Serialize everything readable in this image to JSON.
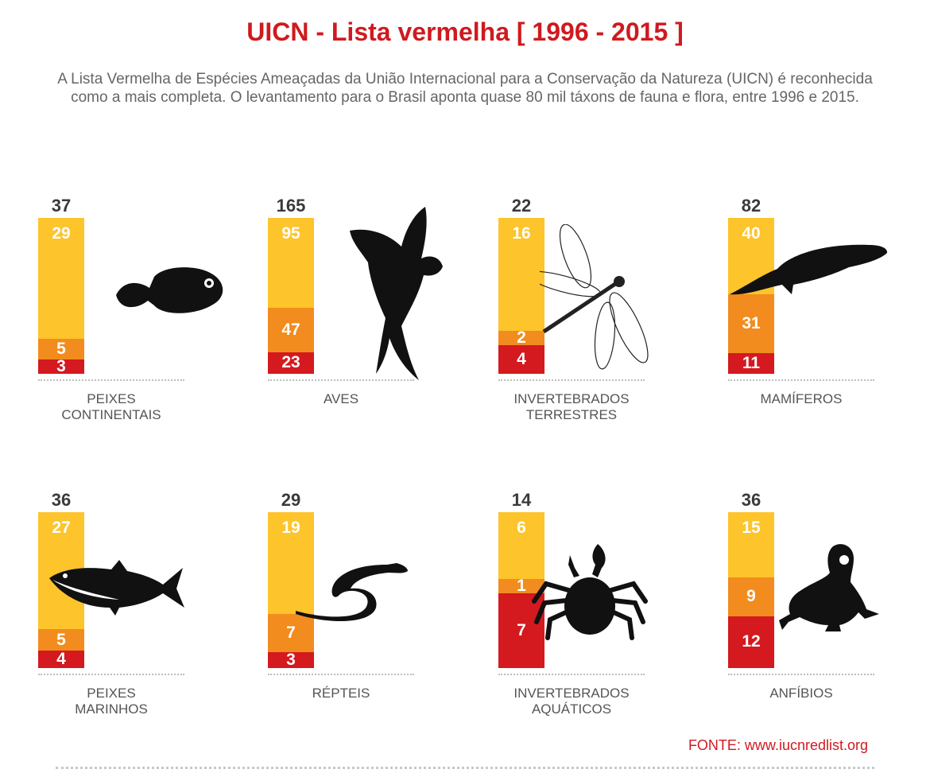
{
  "title": "UICN - Lista vermelha [ 1996 - 2015 ]",
  "subtitle": "A Lista Vermelha de Espécies Ameaçadas da União Internacional para a Conservação da Natureza (UICN) é reconhecida como a mais completa. O levantamento para o Brasil aponta quase 80 mil táxons de fauna e flora, entre 1996 e 2015.",
  "source": "FONTE: www.iucnredlist.org",
  "colors": {
    "top": "#fdc42b",
    "middle": "#f28c1e",
    "bottom": "#d4191f",
    "title": "#cf1a1f"
  },
  "chart_data": {
    "type": "bar",
    "stacked": true,
    "layout": "small multiples, 4 columns x 2 rows",
    "panels": [
      {
        "category": "PEIXES CONTINENTAIS",
        "total": 37,
        "segments": [
          29,
          5,
          3
        ],
        "icon": "fish-icon"
      },
      {
        "category": "AVES",
        "total": 165,
        "segments": [
          95,
          47,
          23
        ],
        "icon": "macaw-icon"
      },
      {
        "category": "INVERTEBRADOS TERRESTRES",
        "total": 22,
        "segments": [
          16,
          2,
          4
        ],
        "icon": "dragonfly-icon"
      },
      {
        "category": "MAMÍFEROS",
        "total": 82,
        "segments": [
          40,
          31,
          11
        ],
        "icon": "whale-icon"
      },
      {
        "category": "PEIXES MARINHOS",
        "total": 36,
        "segments": [
          27,
          5,
          4
        ],
        "icon": "tuna-icon"
      },
      {
        "category": "RÉPTEIS",
        "total": 29,
        "segments": [
          19,
          7,
          3
        ],
        "icon": "snake-icon"
      },
      {
        "category": "INVERTEBRADOS AQUÁTICOS",
        "total": 14,
        "segments": [
          6,
          1,
          7
        ],
        "icon": "crab-icon"
      },
      {
        "category": "ANFÍBIOS",
        "total": 36,
        "segments": [
          15,
          9,
          12
        ],
        "icon": "frog-icon"
      }
    ]
  }
}
